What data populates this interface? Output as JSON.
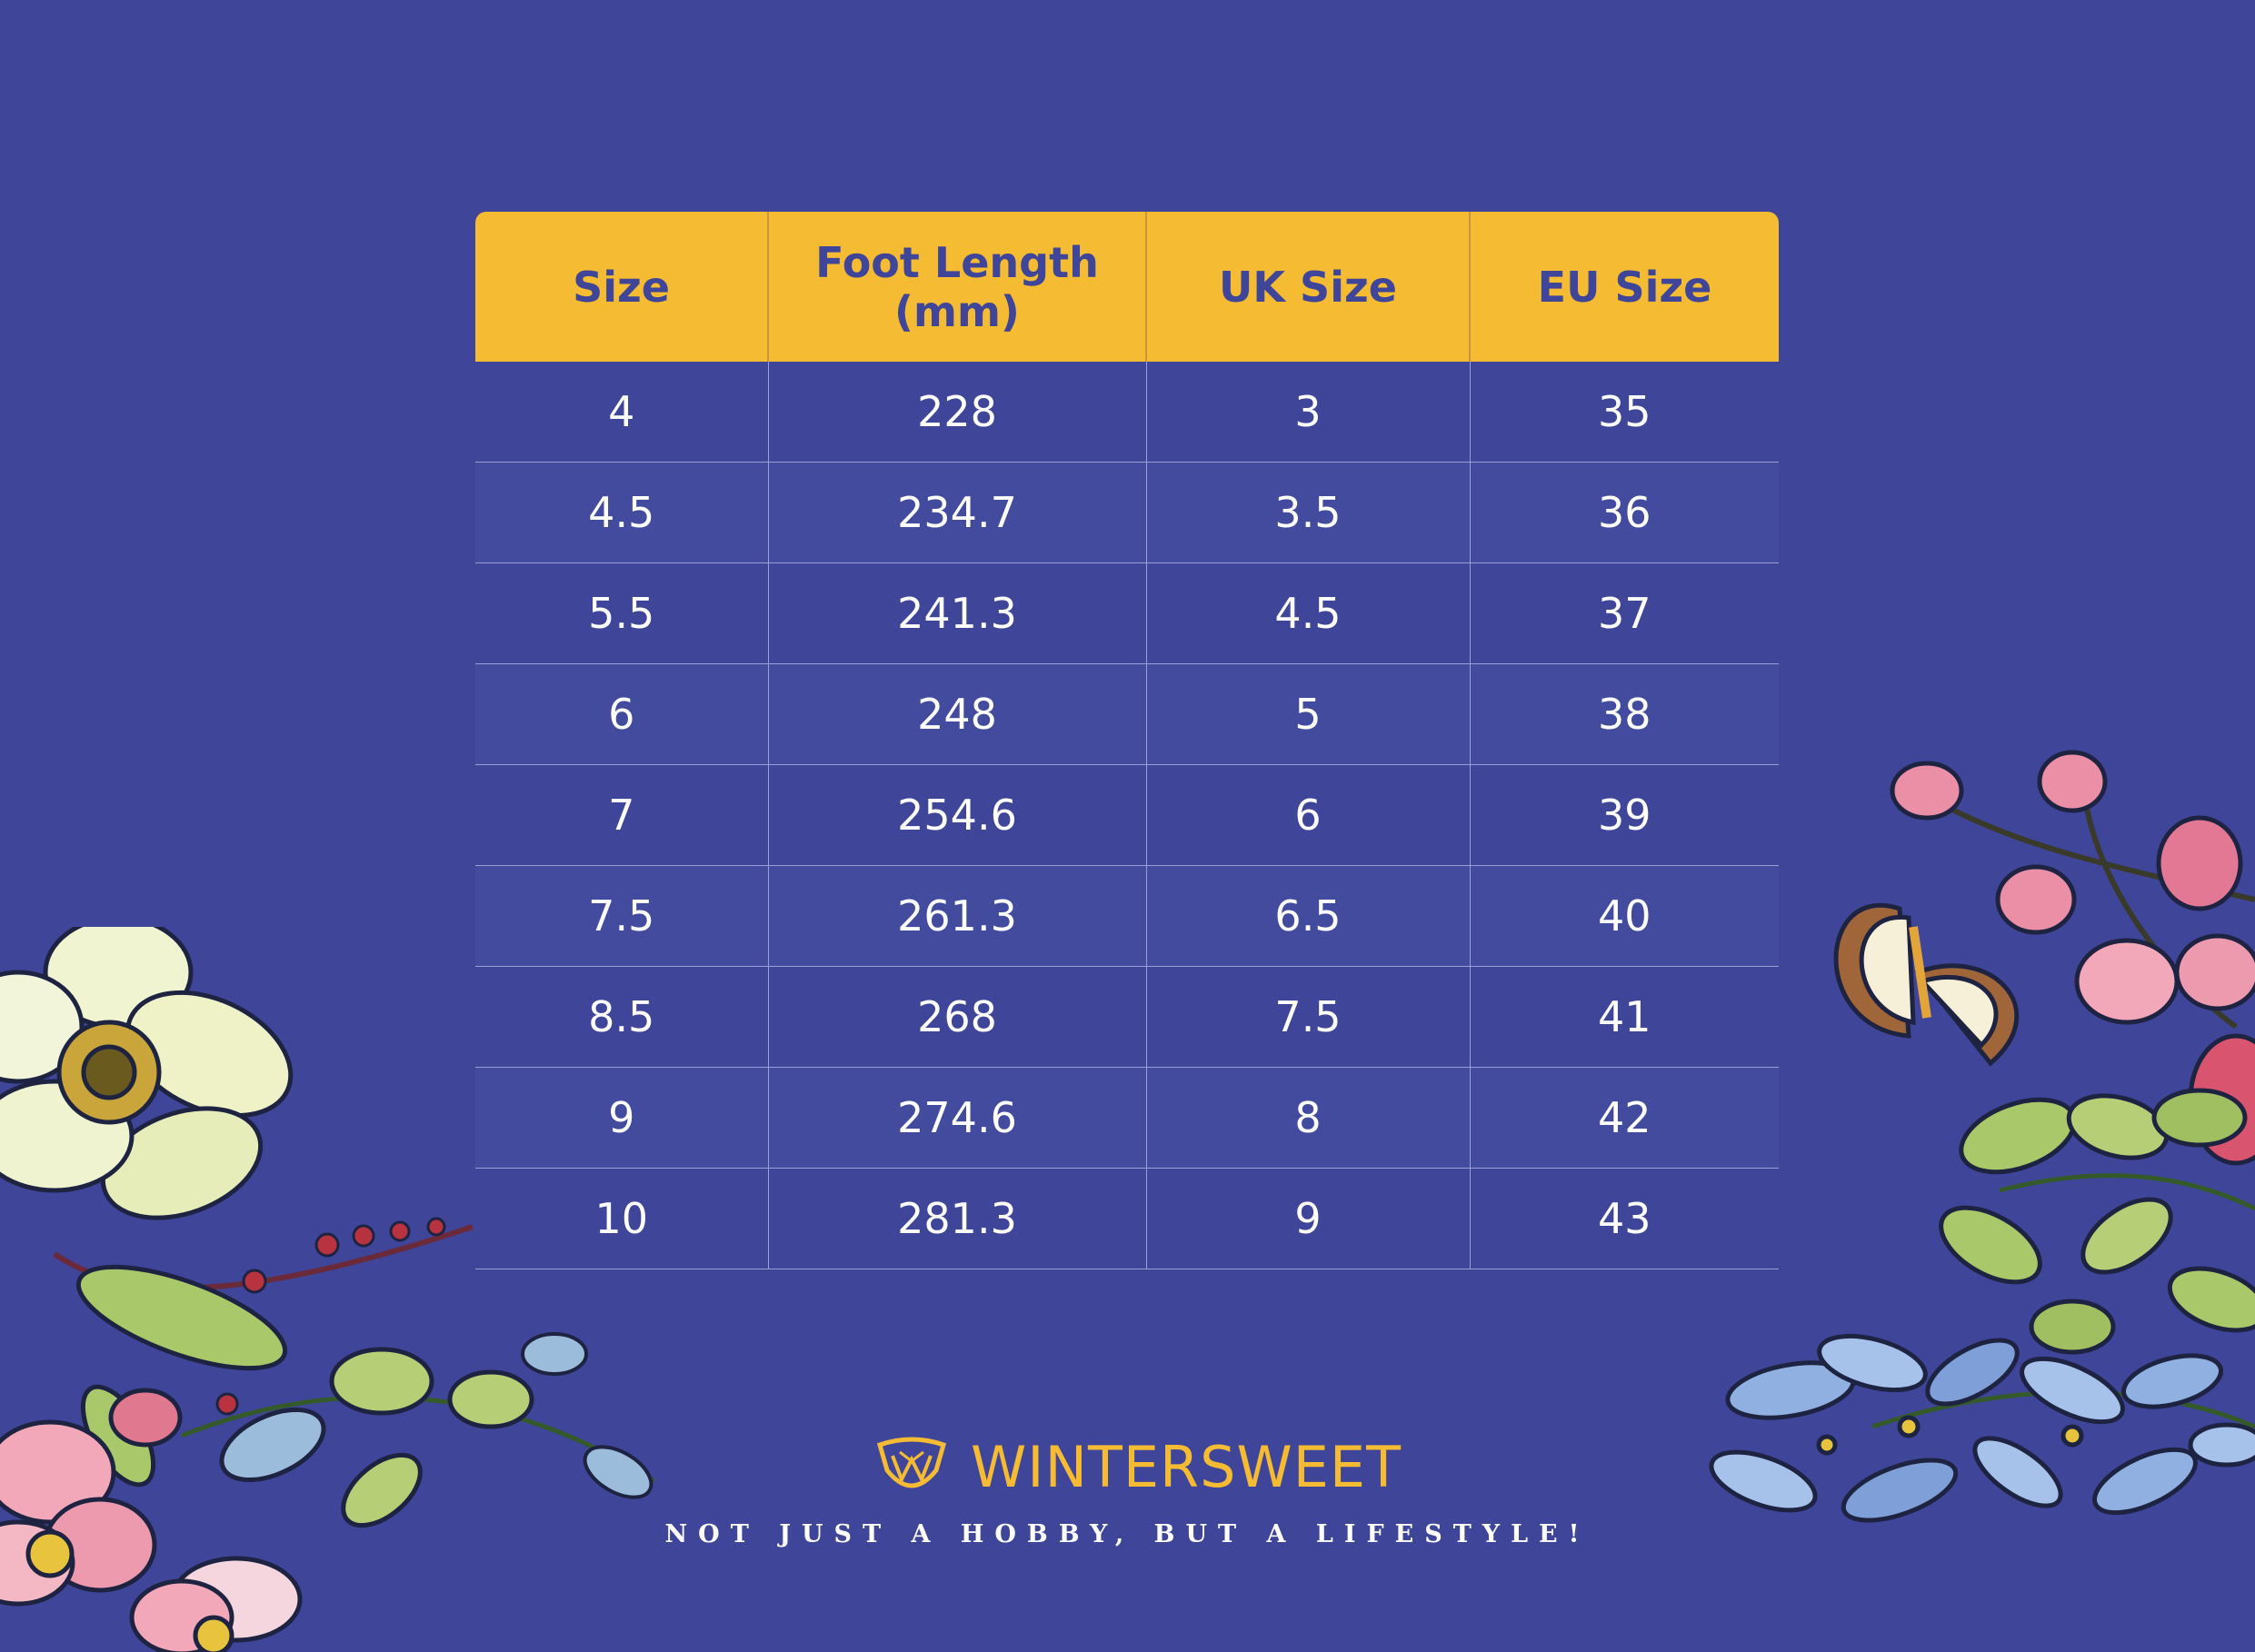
{
  "table": {
    "headers": [
      "Size",
      "Foot Length\n(mm)",
      "UK Size",
      "EU Size"
    ],
    "rows": [
      [
        "4",
        "228",
        "3",
        "35"
      ],
      [
        "4.5",
        "234.7",
        "3.5",
        "36"
      ],
      [
        "5.5",
        "241.3",
        "4.5",
        "37"
      ],
      [
        "6",
        "248",
        "5",
        "38"
      ],
      [
        "7",
        "254.6",
        "6",
        "39"
      ],
      [
        "7.5",
        "261.3",
        "6.5",
        "40"
      ],
      [
        "8.5",
        "268",
        "7.5",
        "41"
      ],
      [
        "9",
        "274.6",
        "8",
        "42"
      ],
      [
        "10",
        "281.3",
        "9",
        "43"
      ]
    ]
  },
  "brand": {
    "name": "WINTERSWEET",
    "tagline": "NOT JUST A HOBBY, BUT A LIFESTYLE!",
    "logo_icon": "wintersweet-logo-icon"
  },
  "colors": {
    "background": "#3f4599",
    "header": "#f4bb33",
    "header_text": "#3f4599",
    "brand": "#f4bb33"
  }
}
